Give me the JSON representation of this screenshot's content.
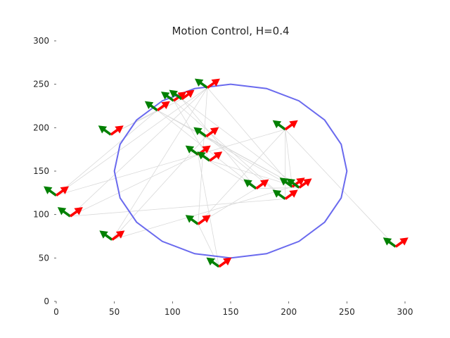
{
  "chart_data": {
    "type": "scatter",
    "title": "Motion Control, H=0.4",
    "xlabel": "",
    "ylabel": "",
    "xlim": [
      0,
      300
    ],
    "ylim": [
      0,
      300
    ],
    "xticks": [
      0,
      50,
      100,
      150,
      200,
      250,
      300
    ],
    "yticks": [
      0,
      50,
      100,
      150,
      200,
      250,
      300
    ],
    "grid": false,
    "circle": {
      "center": [
        150,
        150
      ],
      "radius": 100,
      "color": "#6a6aee"
    },
    "colors": {
      "velocity_arrow": "#ff0000",
      "control_arrow": "#008000",
      "edge": "#d9d9d9"
    },
    "agents": [
      {
        "x": 0,
        "y": 122
      },
      {
        "x": 12,
        "y": 98
      },
      {
        "x": 48,
        "y": 71
      },
      {
        "x": 47,
        "y": 192
      },
      {
        "x": 87,
        "y": 220
      },
      {
        "x": 101,
        "y": 231
      },
      {
        "x": 108,
        "y": 233
      },
      {
        "x": 130,
        "y": 246
      },
      {
        "x": 129,
        "y": 190
      },
      {
        "x": 122,
        "y": 169
      },
      {
        "x": 132,
        "y": 162
      },
      {
        "x": 122,
        "y": 89
      },
      {
        "x": 140,
        "y": 40
      },
      {
        "x": 172,
        "y": 130
      },
      {
        "x": 197,
        "y": 118
      },
      {
        "x": 203,
        "y": 132
      },
      {
        "x": 209,
        "y": 131
      },
      {
        "x": 197,
        "y": 198
      },
      {
        "x": 292,
        "y": 63
      }
    ],
    "edges": [
      [
        0,
        4
      ],
      [
        0,
        7
      ],
      [
        0,
        9
      ],
      [
        1,
        9
      ],
      [
        1,
        7
      ],
      [
        1,
        14
      ],
      [
        2,
        7
      ],
      [
        2,
        15
      ],
      [
        2,
        8
      ],
      [
        3,
        4
      ],
      [
        3,
        6
      ],
      [
        4,
        15
      ],
      [
        4,
        13
      ],
      [
        4,
        16
      ],
      [
        5,
        14
      ],
      [
        5,
        10
      ],
      [
        6,
        16
      ],
      [
        7,
        11
      ],
      [
        7,
        15
      ],
      [
        8,
        14
      ],
      [
        8,
        16
      ],
      [
        9,
        13
      ],
      [
        9,
        17
      ],
      [
        10,
        16
      ],
      [
        11,
        12
      ],
      [
        11,
        17
      ],
      [
        11,
        13
      ],
      [
        12,
        9
      ],
      [
        13,
        16
      ],
      [
        14,
        17
      ],
      [
        15,
        17
      ],
      [
        17,
        18
      ],
      [
        6,
        13
      ]
    ]
  }
}
